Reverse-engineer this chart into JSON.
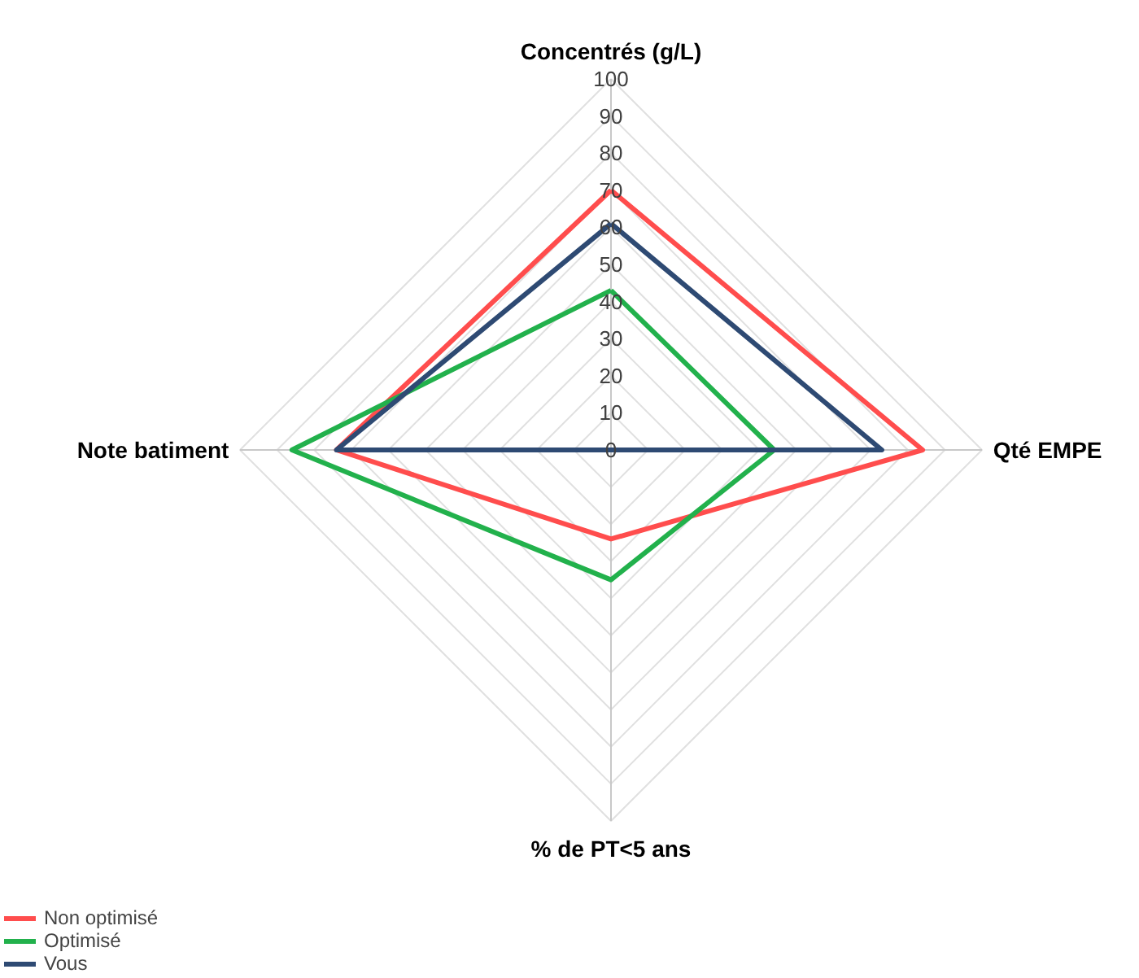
{
  "chart_data": {
    "type": "radar",
    "categories": [
      "Concentrés (g/L)",
      "Qté EMPE",
      "% de PT<5 ans",
      "Note batiment"
    ],
    "ylim": [
      0,
      100
    ],
    "yticks": [
      0,
      10,
      20,
      30,
      40,
      50,
      60,
      70,
      80,
      90,
      100
    ],
    "grid": true,
    "legend": "bottom left",
    "series": [
      {
        "name": "Non optimisé",
        "color": "#ff4d4d",
        "values": [
          70,
          84,
          24,
          74
        ]
      },
      {
        "name": "Optimisé",
        "color": "#22b14c",
        "values": [
          43,
          44,
          35,
          86
        ]
      },
      {
        "name": "Vous",
        "color": "#2e4a73",
        "values": [
          61,
          73,
          0,
          74
        ]
      }
    ]
  }
}
